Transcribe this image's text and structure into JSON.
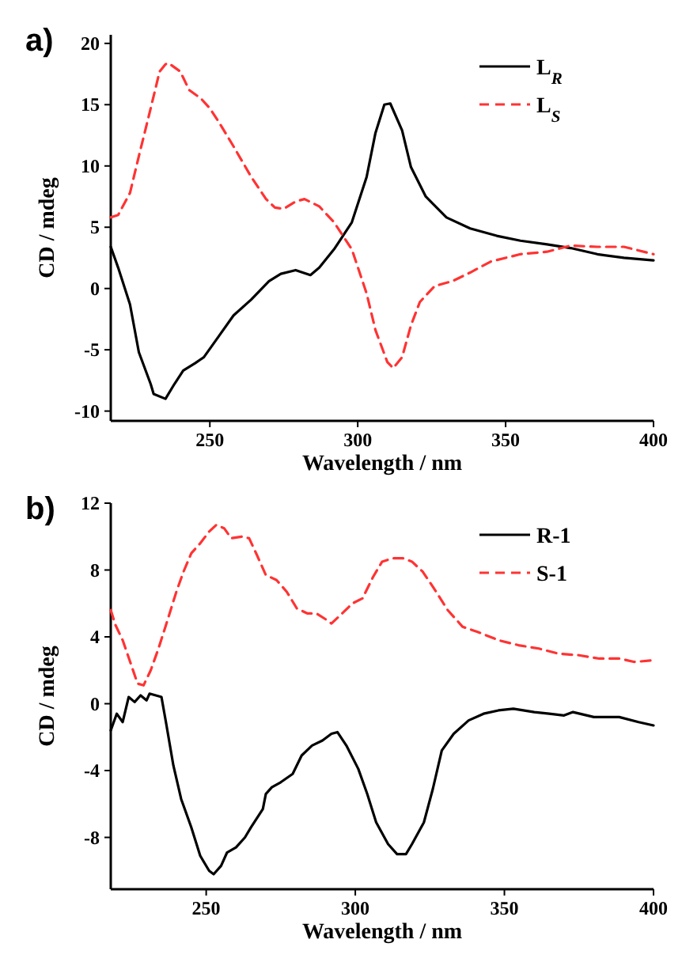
{
  "chart_data": [
    {
      "type": "line",
      "title": "a)",
      "xlabel": "Wavelength / nm",
      "ylabel": "CD / mdeg",
      "xlim": [
        216.5,
        400
      ],
      "ylim": [
        -10.8,
        20.7
      ],
      "xticks": [
        250,
        300,
        350,
        400
      ],
      "yticks": [
        -10,
        -5,
        0,
        5,
        10,
        15,
        20
      ],
      "legend": "top right",
      "series": [
        {
          "name": "L$_{R}$",
          "color": "#000000",
          "line_style": "solid",
          "x": [
            216.5,
            219,
            223,
            226,
            230,
            231,
            235,
            238,
            241,
            245,
            248,
            253,
            258,
            264,
            270,
            274,
            279,
            284,
            287,
            292,
            298,
            303,
            306,
            309,
            311,
            315,
            318,
            323,
            330,
            338,
            347,
            355,
            364,
            372,
            381,
            390,
            400
          ],
          "values": [
            3.4,
            1.7,
            -1.3,
            -5.2,
            -7.8,
            -8.6,
            -9.0,
            -7.8,
            -6.7,
            -6.1,
            -5.6,
            -3.9,
            -2.2,
            -0.9,
            0.6,
            1.2,
            1.5,
            1.1,
            1.7,
            3.2,
            5.4,
            9.1,
            12.7,
            15.0,
            15.1,
            12.9,
            9.9,
            7.5,
            5.8,
            4.9,
            4.3,
            3.9,
            3.6,
            3.3,
            2.8,
            2.5,
            2.3
          ]
        },
        {
          "name": "L$_{S}$",
          "color": "#ff3333",
          "line_style": "dashed",
          "x": [
            216.5,
            219,
            223,
            226,
            230,
            233,
            235,
            236,
            240,
            243,
            247,
            250,
            253,
            258,
            264,
            269,
            272,
            275,
            279,
            282,
            287,
            292,
            298,
            303,
            306,
            310,
            312,
            315,
            318,
            321,
            326,
            332,
            338,
            345,
            355,
            364,
            372,
            381,
            390,
            400
          ],
          "values": [
            5.8,
            6.0,
            7.8,
            10.8,
            14.7,
            17.7,
            18.3,
            18.4,
            17.7,
            16.2,
            15.5,
            14.7,
            13.6,
            11.6,
            9.1,
            7.3,
            6.6,
            6.5,
            7.1,
            7.3,
            6.7,
            5.4,
            3.2,
            -0.4,
            -3.4,
            -6.0,
            -6.5,
            -5.6,
            -3.0,
            -1.1,
            0.2,
            0.6,
            1.3,
            2.2,
            2.8,
            3.0,
            3.5,
            3.4,
            3.4,
            2.8
          ]
        }
      ]
    },
    {
      "type": "line",
      "title": "b)",
      "xlabel": "Wavelength / nm",
      "ylabel": "CD / mdeg",
      "xlim": [
        218,
        400
      ],
      "ylim": [
        -11.1,
        12
      ],
      "xticks": [
        250,
        300,
        350,
        400
      ],
      "yticks": [
        -8,
        -4,
        0,
        4,
        8,
        12
      ],
      "legend": "top right",
      "series": [
        {
          "name": "R-1",
          "color": "#000000",
          "line_style": "solid",
          "x": [
            218,
            220,
            222,
            224,
            226,
            228,
            230,
            231,
            235,
            236.5,
            239,
            241.6,
            245,
            248,
            251,
            252.5,
            255,
            257,
            260,
            263,
            265,
            269,
            270,
            272,
            275,
            279,
            282,
            285.5,
            289,
            292,
            294,
            297,
            301,
            304,
            307,
            311,
            314,
            317,
            319,
            323,
            326,
            329,
            333,
            338,
            343,
            348,
            353,
            360,
            365,
            370,
            373,
            380,
            388.5,
            395,
            400
          ],
          "values": [
            -1.6,
            -0.6,
            -1.1,
            0.4,
            0.1,
            0.5,
            0.2,
            0.6,
            0.4,
            -1.1,
            -3.7,
            -5.7,
            -7.4,
            -9.1,
            -10.0,
            -10.2,
            -9.7,
            -8.9,
            -8.6,
            -8.0,
            -7.4,
            -6.3,
            -5.4,
            -5.0,
            -4.7,
            -4.2,
            -3.1,
            -2.5,
            -2.2,
            -1.8,
            -1.7,
            -2.5,
            -3.9,
            -5.4,
            -7.1,
            -8.4,
            -9.0,
            -9.0,
            -8.4,
            -7.1,
            -5.1,
            -2.8,
            -1.8,
            -1.0,
            -0.6,
            -0.4,
            -0.3,
            -0.5,
            -0.6,
            -0.7,
            -0.5,
            -0.8,
            -0.8,
            -1.1,
            -1.3
          ]
        },
        {
          "name": "S-1",
          "color": "#ff3333",
          "line_style": "dashed",
          "x": [
            218,
            219.6,
            222,
            224.7,
            227,
            229,
            231.4,
            234,
            236.5,
            240,
            242.4,
            245,
            248,
            251,
            253.4,
            256,
            258.4,
            262,
            264.4,
            267,
            270,
            273.6,
            277,
            280.4,
            284,
            287,
            290.5,
            292,
            295.6,
            299,
            302.4,
            306,
            309,
            312.5,
            316,
            319,
            322.6,
            326,
            331,
            336,
            341,
            348,
            354.7,
            361.5,
            368,
            375,
            381.8,
            388.5,
            393.6,
            400
          ],
          "values": [
            5.6,
            4.7,
            3.8,
            2.4,
            1.2,
            1.1,
            2.0,
            3.3,
            4.7,
            6.7,
            7.9,
            9.0,
            9.6,
            10.3,
            10.7,
            10.5,
            9.9,
            10.0,
            9.9,
            8.9,
            7.7,
            7.4,
            6.7,
            5.7,
            5.4,
            5.4,
            5.0,
            4.8,
            5.4,
            6.0,
            6.3,
            7.6,
            8.5,
            8.7,
            8.7,
            8.5,
            7.9,
            7.0,
            5.6,
            4.6,
            4.3,
            3.8,
            3.5,
            3.3,
            3.0,
            2.9,
            2.7,
            2.7,
            2.5,
            2.6
          ]
        }
      ]
    }
  ]
}
